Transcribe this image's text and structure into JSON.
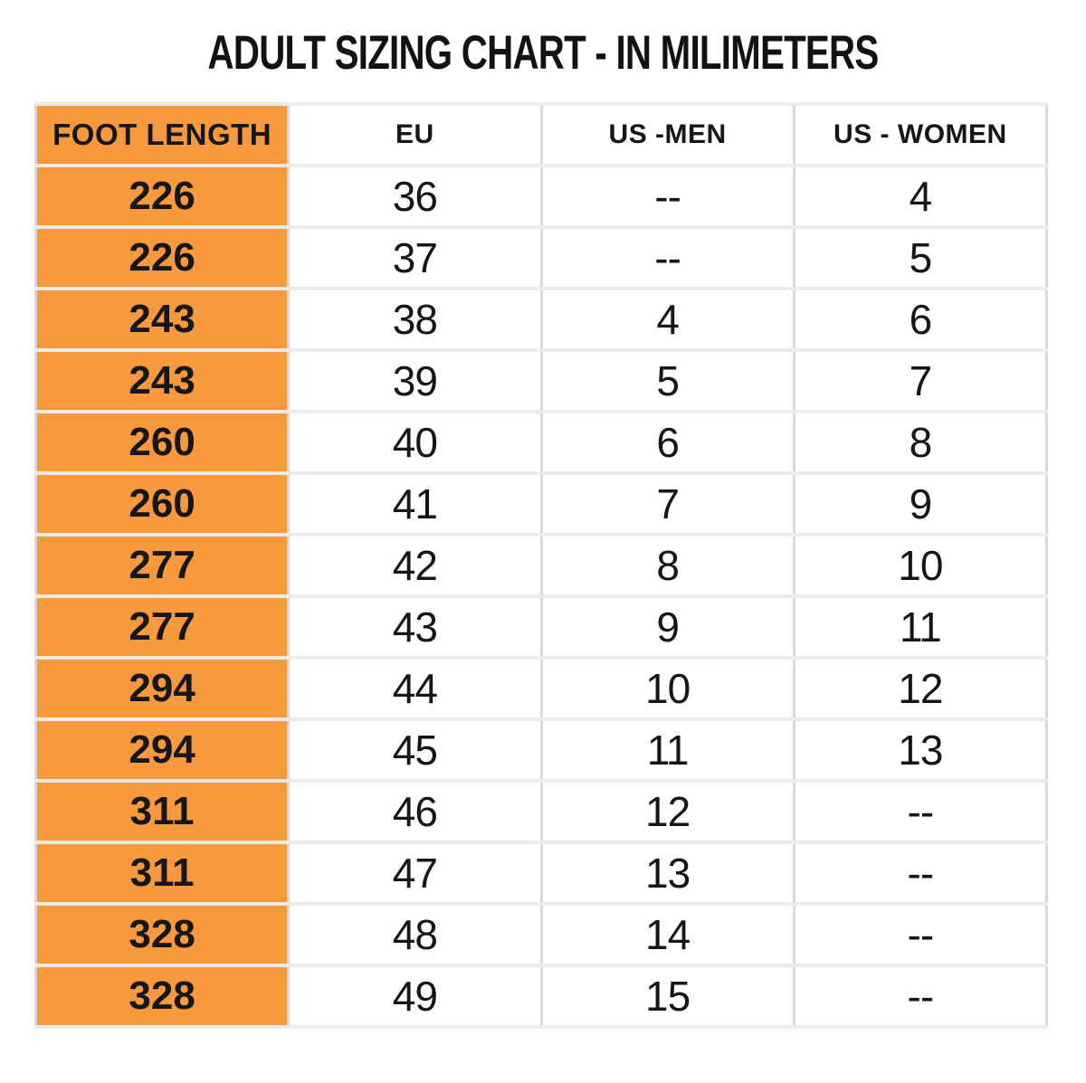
{
  "chart_data": {
    "type": "table",
    "title": "ADULT SIZING CHART - IN MILIMETERS",
    "columns": [
      "FOOT LENGTH",
      "EU",
      "US -MEN",
      "US - WOMEN"
    ],
    "rows": [
      [
        "226",
        "36",
        "--",
        "4"
      ],
      [
        "226",
        "37",
        "--",
        "5"
      ],
      [
        "243",
        "38",
        "4",
        "6"
      ],
      [
        "243",
        "39",
        "5",
        "7"
      ],
      [
        "260",
        "40",
        "6",
        "8"
      ],
      [
        "260",
        "41",
        "7",
        "9"
      ],
      [
        "277",
        "42",
        "8",
        "10"
      ],
      [
        "277",
        "43",
        "9",
        "11"
      ],
      [
        "294",
        "44",
        "10",
        "12"
      ],
      [
        "294",
        "45",
        "11",
        "13"
      ],
      [
        "311",
        "46",
        "12",
        "--"
      ],
      [
        "311",
        "47",
        "13",
        "--"
      ],
      [
        "328",
        "48",
        "14",
        "--"
      ],
      [
        "328",
        "49",
        "15",
        "--"
      ]
    ],
    "highlight_column": "FOOT LENGTH",
    "units": "milimeters",
    "layout": "first column highlighted orange; 4 equal-width columns; all cells center-aligned; light gray grid lines"
  },
  "colors": {
    "highlight_orange": "#F9993D",
    "row_divider": "#ECEBE8",
    "column_divider": "#D8D8D8",
    "text": "#161616",
    "background": "#FFFFFF"
  }
}
